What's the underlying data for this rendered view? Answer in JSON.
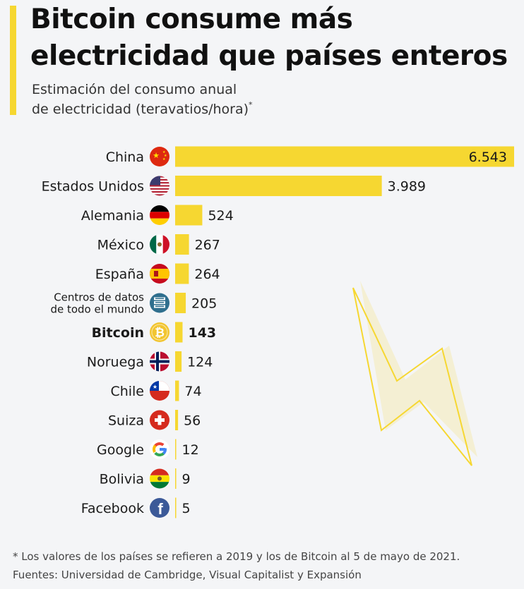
{
  "header": {
    "title": "Bitcoin consume más electricidad que países enteros",
    "subtitle_line1": "Estimación del consumo anual",
    "subtitle_line2": "de electricidad (teravatios/hora)",
    "subtitle_mark": "*"
  },
  "chart_data": {
    "type": "bar",
    "orientation": "horizontal",
    "title": "Bitcoin consume más electricidad que países enteros",
    "subtitle": "Estimación del consumo anual de electricidad (teravatios/hora)*",
    "xlabel": "",
    "ylabel": "",
    "unit": "TWh",
    "xlim": [
      0,
      6543
    ],
    "grid": false,
    "bar_color": "#f6d731",
    "categories": [
      {
        "label": "China",
        "value": 6543,
        "value_label": "6.543",
        "icon": "flag-china-icon",
        "bold": false
      },
      {
        "label": "Estados Unidos",
        "value": 3989,
        "value_label": "3.989",
        "icon": "flag-usa-icon",
        "bold": false
      },
      {
        "label": "Alemania",
        "value": 524,
        "value_label": "524",
        "icon": "flag-germany-icon",
        "bold": false
      },
      {
        "label": "México",
        "value": 267,
        "value_label": "267",
        "icon": "flag-mexico-icon",
        "bold": false
      },
      {
        "label": "España",
        "value": 264,
        "value_label": "264",
        "icon": "flag-spain-icon",
        "bold": false
      },
      {
        "label": "Centros de datos\nde todo el mundo",
        "value": 205,
        "value_label": "205",
        "icon": "data-center-icon",
        "bold": false
      },
      {
        "label": "Bitcoin",
        "value": 143,
        "value_label": "143",
        "icon": "bitcoin-icon",
        "bold": true
      },
      {
        "label": "Noruega",
        "value": 124,
        "value_label": "124",
        "icon": "flag-norway-icon",
        "bold": false
      },
      {
        "label": "Chile",
        "value": 74,
        "value_label": "74",
        "icon": "flag-chile-icon",
        "bold": false
      },
      {
        "label": "Suiza",
        "value": 56,
        "value_label": "56",
        "icon": "flag-switzerland-icon",
        "bold": false
      },
      {
        "label": "Google",
        "value": 12,
        "value_label": "12",
        "icon": "google-icon",
        "bold": false
      },
      {
        "label": "Bolivia",
        "value": 9,
        "value_label": "9",
        "icon": "flag-bolivia-icon",
        "bold": false
      },
      {
        "label": "Facebook",
        "value": 5,
        "value_label": "5",
        "icon": "facebook-icon",
        "bold": false
      }
    ]
  },
  "footer": {
    "footnote": "* Los valores de los países se refieren a 2019 y los de Bitcoin al 5 de mayo de 2021.",
    "sources": "Fuentes: Universidad de Cambridge, Visual Capitalist y Expansión"
  },
  "decoration": {
    "icon": "lightning-bolt-icon"
  }
}
